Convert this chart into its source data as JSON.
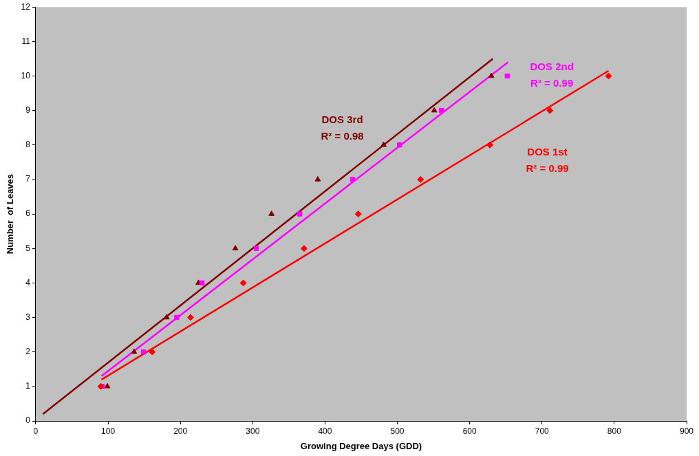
{
  "chart_data": {
    "type": "scatter",
    "xlabel": "Growing Degree Days (GDD)",
    "ylabel": "Number  of Leaves",
    "xlim": [
      0,
      900
    ],
    "xticks": [
      0,
      100,
      200,
      300,
      400,
      500,
      600,
      700,
      800,
      900
    ],
    "ylim": [
      0,
      12
    ],
    "yticks": [
      0,
      1,
      2,
      3,
      4,
      5,
      6,
      7,
      8,
      9,
      10,
      11,
      12
    ],
    "grid": false,
    "legend": false,
    "series": [
      {
        "type": "scatter",
        "marker": "diamond",
        "color": "#ff0000",
        "x": [
          90,
          161,
          214,
          287,
          371,
          446,
          532,
          628,
          711,
          792
        ],
        "values": [
          1,
          2,
          3,
          4,
          5,
          6,
          7,
          8,
          9,
          10
        ]
      },
      {
        "type": "scatter",
        "marker": "square",
        "color": "#ff00ff",
        "x": [
          92,
          149,
          195,
          230,
          305,
          365,
          438,
          503,
          561,
          652
        ],
        "values": [
          1,
          2,
          3,
          4,
          5,
          6,
          7,
          8,
          9,
          10
        ]
      },
      {
        "type": "scatter",
        "marker": "triangle",
        "color": "#800000",
        "x": [
          99,
          136,
          181,
          225,
          276,
          326,
          390,
          481,
          551,
          630
        ],
        "values": [
          1,
          2,
          3,
          4,
          5,
          6,
          7,
          8,
          9,
          10
        ]
      },
      {
        "type": "line",
        "name": "DOS 1st",
        "marker": "none",
        "color": "#ff0000",
        "x": [
          91,
          792
        ],
        "values": [
          1.2,
          10.15
        ]
      },
      {
        "type": "line",
        "name": "DOS 2nd",
        "marker": "none",
        "color": "#ff00ff",
        "x": [
          91,
          653
        ],
        "values": [
          1.3,
          10.4
        ]
      },
      {
        "type": "line",
        "name": "DOS 3rd",
        "marker": "none",
        "color": "#800000",
        "x": [
          10,
          632
        ],
        "values": [
          0.2,
          10.5
        ]
      }
    ],
    "annotations": [
      "R² = 0.99",
      "R² = 0.99",
      "R² = 0.98"
    ]
  }
}
